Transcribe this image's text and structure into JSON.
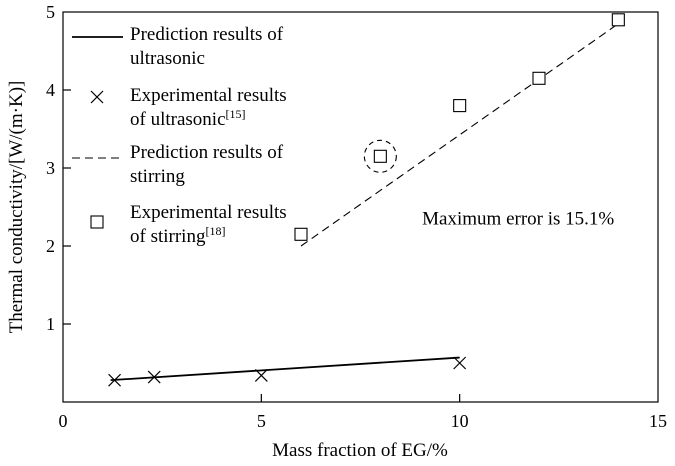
{
  "chart_data": {
    "type": "scatter",
    "title": "",
    "xlabel": "Mass fraction of EG/%",
    "ylabel": "Thermal conductivity/[W/(m·K)]",
    "xlim": [
      0,
      15
    ],
    "ylim": [
      0,
      5
    ],
    "x_ticks": [
      "0",
      "5",
      "10",
      "15"
    ],
    "y_ticks": [
      "1",
      "2",
      "3",
      "4",
      "5"
    ],
    "legend_position": "top-left",
    "legend": [
      {
        "key": "pred_ultra",
        "lines": [
          "Prediction results of",
          "ultrasonic"
        ],
        "sup": ""
      },
      {
        "key": "exp_ultra",
        "lines": [
          "Experimental results",
          "of ultrasonic"
        ],
        "sup": "[15]"
      },
      {
        "key": "pred_stir",
        "lines": [
          "Prediction results of",
          "stirring"
        ],
        "sup": ""
      },
      {
        "key": "exp_stir",
        "lines": [
          "Experimental results",
          "of stirring"
        ],
        "sup": "[18]"
      }
    ],
    "series": [
      {
        "key": "pred_ultra",
        "name": "Prediction results of ultrasonic",
        "style": "solid-line",
        "x": [
          1.2,
          10
        ],
        "y": [
          0.28,
          0.57
        ]
      },
      {
        "key": "exp_ultra",
        "name": "Experimental results of ultrasonic",
        "style": "x-marker",
        "x": [
          1.3,
          2.3,
          5.0,
          10.0
        ],
        "y": [
          0.28,
          0.32,
          0.34,
          0.5
        ]
      },
      {
        "key": "pred_stir",
        "name": "Prediction results of stirring",
        "style": "dashed-line",
        "x": [
          6.0,
          14.0
        ],
        "y": [
          2.0,
          4.85
        ]
      },
      {
        "key": "exp_stir",
        "name": "Experimental results of stirring",
        "style": "square-marker",
        "x": [
          6.0,
          8.0,
          10.0,
          12.0,
          14.0
        ],
        "y": [
          2.15,
          3.15,
          3.8,
          4.15,
          4.9
        ]
      }
    ],
    "highlight": {
      "x": 8.0,
      "y": 3.15,
      "style": "dashed-circle"
    },
    "annotation": {
      "text": "Maximum error is 15.1%",
      "x": 11.5,
      "y": 2.35
    }
  }
}
